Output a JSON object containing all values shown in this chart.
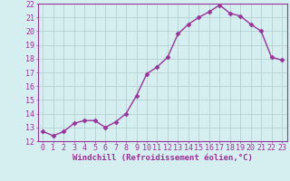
{
  "x": [
    0,
    1,
    2,
    3,
    4,
    5,
    6,
    7,
    8,
    9,
    10,
    11,
    12,
    13,
    14,
    15,
    16,
    17,
    18,
    19,
    20,
    21,
    22,
    23
  ],
  "y": [
    12.7,
    12.4,
    12.7,
    13.3,
    13.5,
    13.5,
    13.0,
    13.4,
    14.0,
    15.3,
    16.9,
    17.4,
    18.1,
    19.8,
    20.5,
    21.0,
    21.4,
    21.9,
    21.3,
    21.1,
    20.5,
    20.0,
    18.1,
    17.9
  ],
  "line_color": "#993399",
  "marker": "D",
  "markersize": 2.5,
  "linewidth": 1.0,
  "xlabel": "Windchill (Refroidissement éolien,°C)",
  "xlabel_fontsize": 6.5,
  "ylim": [
    12,
    22
  ],
  "xlim": [
    -0.5,
    23.5
  ],
  "yticks": [
    12,
    13,
    14,
    15,
    16,
    17,
    18,
    19,
    20,
    21,
    22
  ],
  "xticks": [
    0,
    1,
    2,
    3,
    4,
    5,
    6,
    7,
    8,
    9,
    10,
    11,
    12,
    13,
    14,
    15,
    16,
    17,
    18,
    19,
    20,
    21,
    22,
    23
  ],
  "bg_color": "#d5eef0",
  "grid_color": "#b0cccc",
  "tick_fontsize": 6,
  "tick_color": "#993399",
  "spine_color": "#993399"
}
